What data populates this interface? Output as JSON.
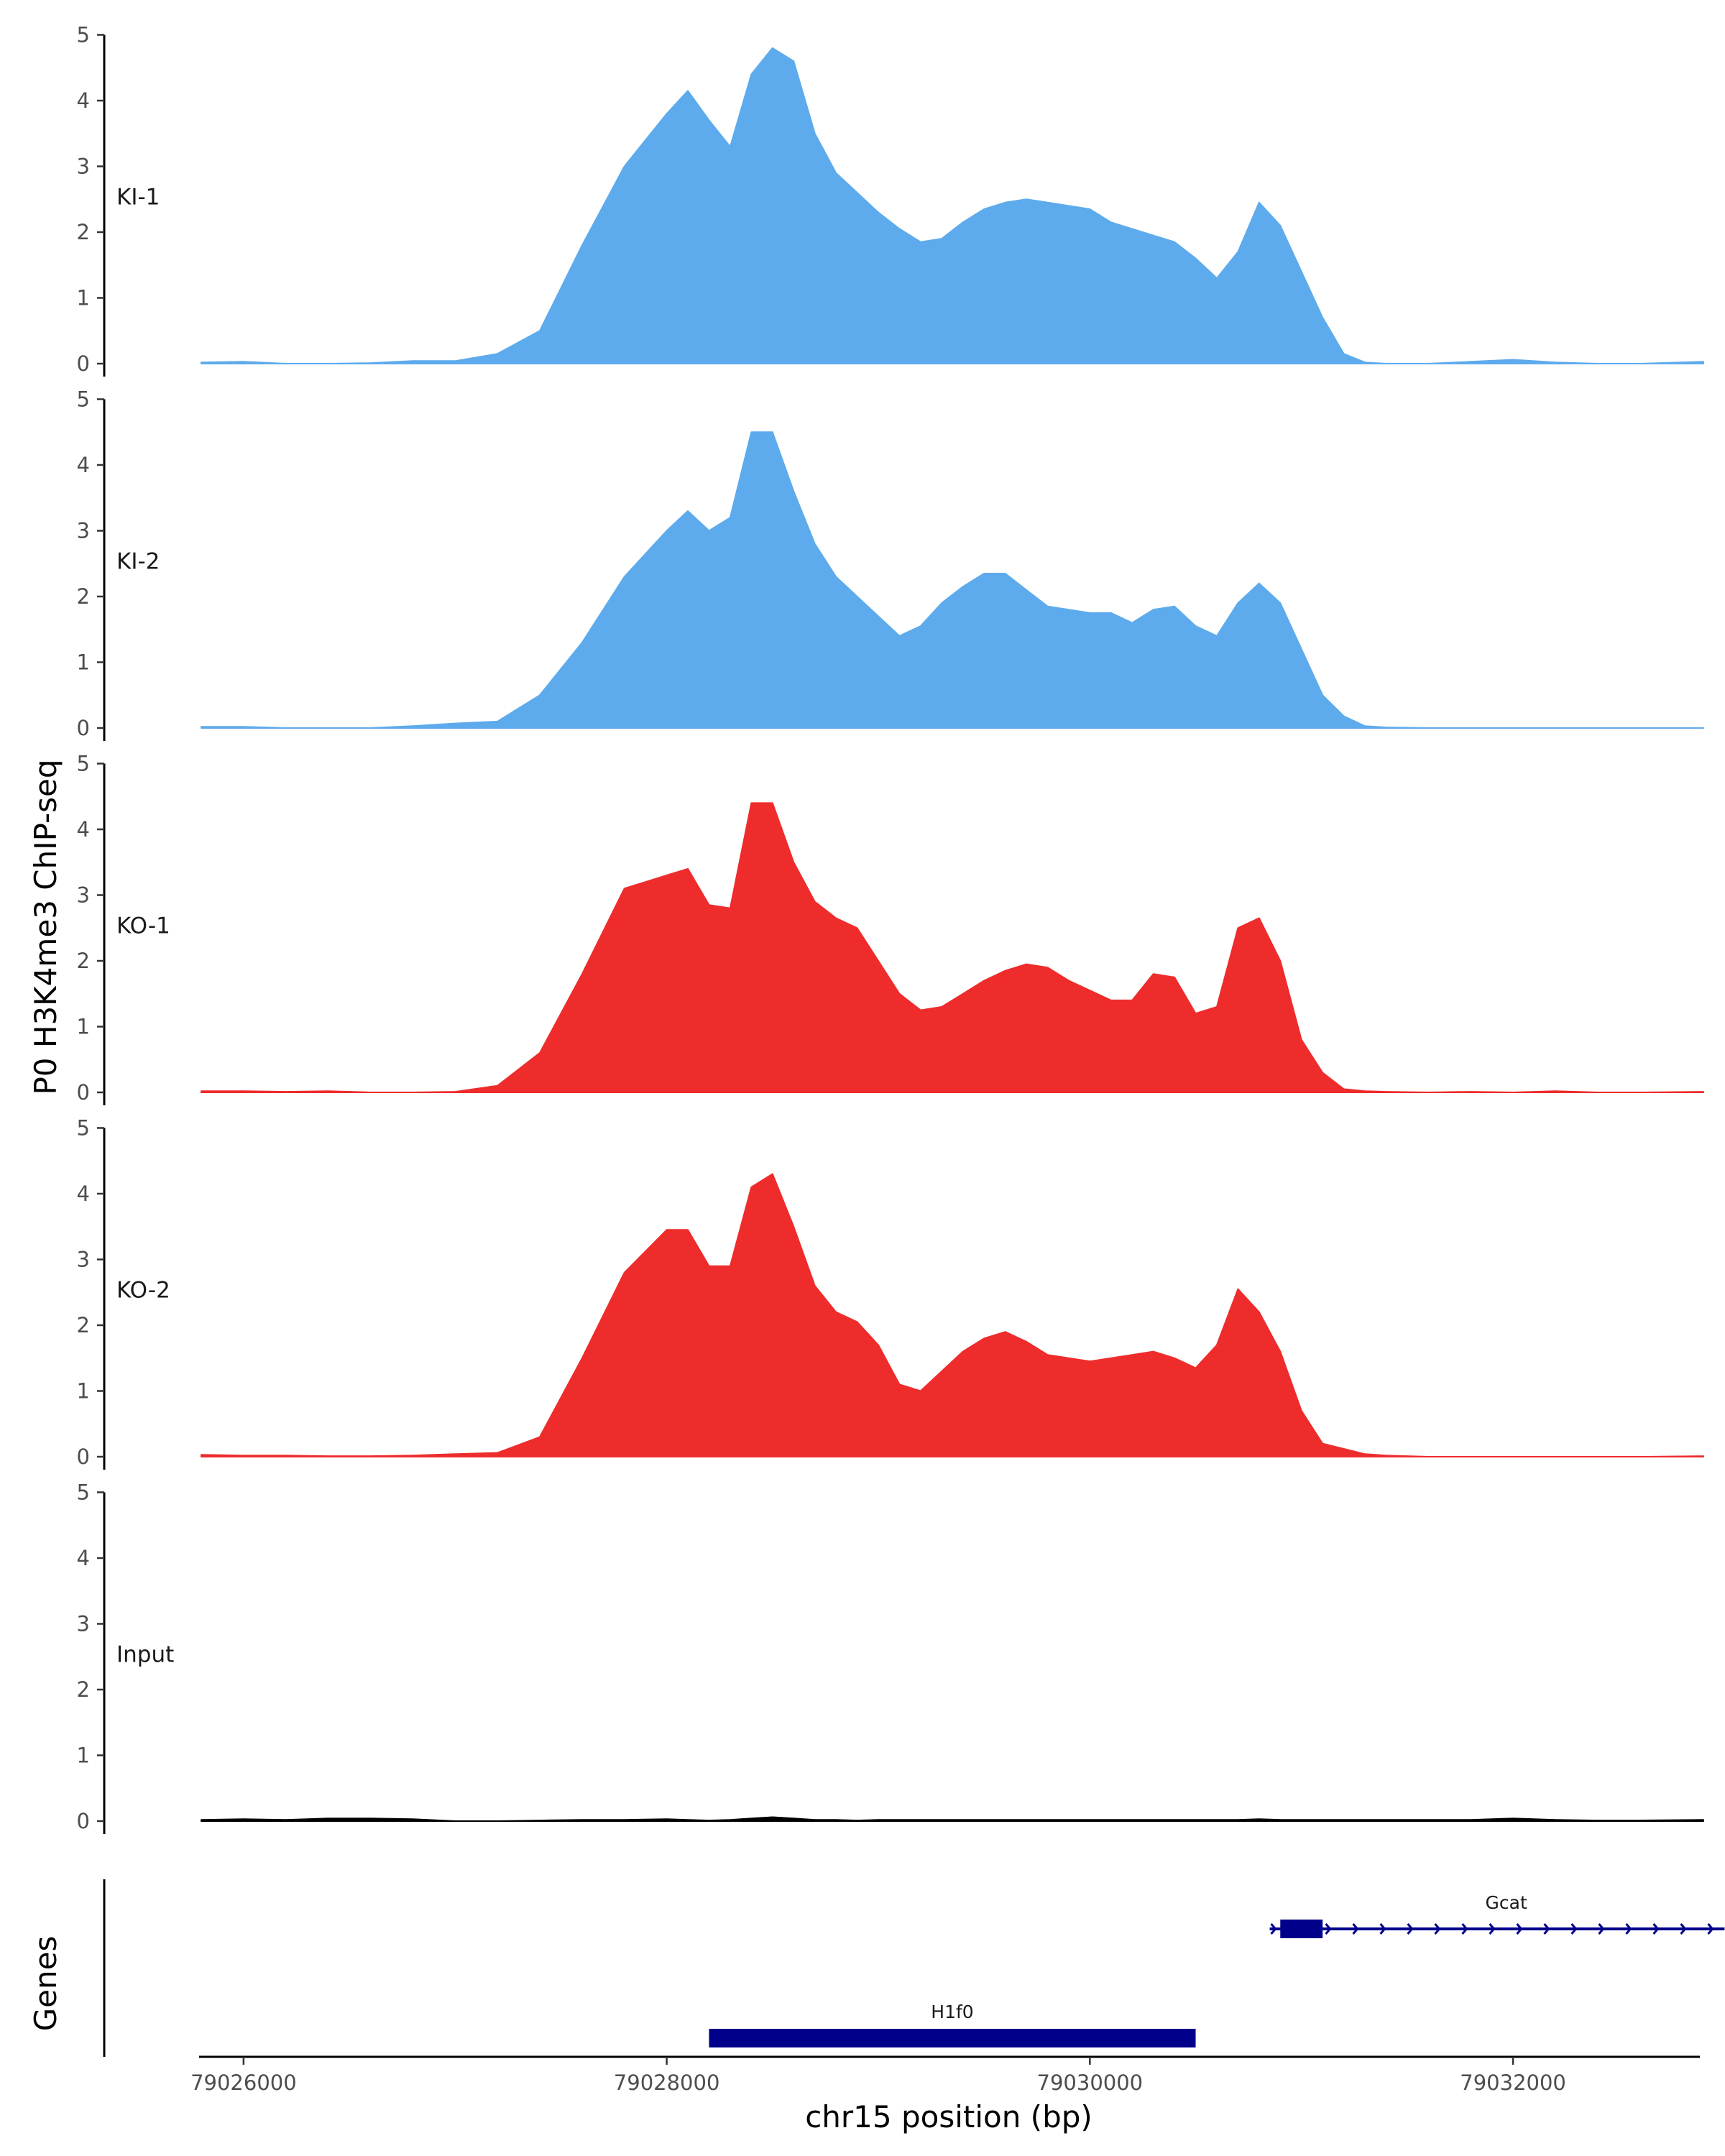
{
  "chart_data": {
    "type": "area",
    "title": "",
    "ylabel": "P0 H3K4me3 ChIP-seq",
    "xlabel": "chr15 position (bp)",
    "gene_track_label": "Genes",
    "xlim": [
      79025800,
      79032900
    ],
    "ylim": [
      0,
      5
    ],
    "y_ticks": [
      0,
      1,
      2,
      3,
      4,
      5
    ],
    "y_tick_labels": [
      "0",
      "1",
      "2",
      "3",
      "4",
      "5"
    ],
    "x_ticks": [
      79026000,
      79028000,
      79030000,
      79032000
    ],
    "x_tick_labels": [
      "79026000",
      "79028000",
      "79030000",
      "79032000"
    ],
    "colors": {
      "KI": "#5DABEC",
      "KO": "#EE2C2C",
      "Input": "#000000",
      "genes": "#00008B"
    },
    "x": [
      79025800,
      79026000,
      79026200,
      79026400,
      79026600,
      79026800,
      79027000,
      79027200,
      79027400,
      79027600,
      79027800,
      79028000,
      79028100,
      79028200,
      79028300,
      79028400,
      79028500,
      79028600,
      79028700,
      79028800,
      79028900,
      79029000,
      79029100,
      79029200,
      79029300,
      79029400,
      79029500,
      79029600,
      79029700,
      79029800,
      79029900,
      79030000,
      79030100,
      79030200,
      79030300,
      79030400,
      79030500,
      79030600,
      79030700,
      79030800,
      79030900,
      79031000,
      79031100,
      79031200,
      79031300,
      79031400,
      79031600,
      79031800,
      79032000,
      79032200,
      79032400,
      79032600,
      79032900
    ],
    "series": [
      {
        "name": "KI-1",
        "color": "#5DABEC",
        "values": [
          0.02,
          0.03,
          0.0,
          0.0,
          0.01,
          0.04,
          0.04,
          0.15,
          0.5,
          1.8,
          3.0,
          3.8,
          4.15,
          3.7,
          3.3,
          4.4,
          4.8,
          4.6,
          3.5,
          2.9,
          2.6,
          2.3,
          2.05,
          1.85,
          1.9,
          2.15,
          2.35,
          2.45,
          2.5,
          2.45,
          2.4,
          2.35,
          2.15,
          2.05,
          1.95,
          1.85,
          1.6,
          1.3,
          1.7,
          2.45,
          2.1,
          1.4,
          0.7,
          0.15,
          0.02,
          0.0,
          0.0,
          0.03,
          0.06,
          0.02,
          0.0,
          0.0,
          0.03
        ]
      },
      {
        "name": "KI-2",
        "color": "#5DABEC",
        "values": [
          0.02,
          0.02,
          0.0,
          0.0,
          0.0,
          0.03,
          0.07,
          0.1,
          0.5,
          1.3,
          2.3,
          3.0,
          3.3,
          3.0,
          3.2,
          4.5,
          4.5,
          3.6,
          2.8,
          2.3,
          2.0,
          1.7,
          1.4,
          1.55,
          1.9,
          2.15,
          2.35,
          2.35,
          2.1,
          1.85,
          1.8,
          1.75,
          1.75,
          1.6,
          1.8,
          1.85,
          1.55,
          1.4,
          1.9,
          2.2,
          1.9,
          1.2,
          0.5,
          0.18,
          0.03,
          0.01,
          0.0,
          0.0,
          0.0,
          0.0,
          0.0,
          0.0,
          0.0
        ]
      },
      {
        "name": "KO-1",
        "color": "#EE2C2C",
        "values": [
          0.02,
          0.02,
          0.01,
          0.02,
          0.0,
          0.0,
          0.01,
          0.1,
          0.6,
          1.8,
          3.1,
          3.3,
          3.4,
          2.85,
          2.8,
          4.4,
          4.4,
          3.5,
          2.9,
          2.65,
          2.5,
          2.0,
          1.5,
          1.25,
          1.3,
          1.5,
          1.7,
          1.85,
          1.95,
          1.9,
          1.7,
          1.55,
          1.4,
          1.4,
          1.8,
          1.75,
          1.2,
          1.3,
          2.5,
          2.65,
          2.0,
          0.8,
          0.3,
          0.05,
          0.02,
          0.01,
          0.0,
          0.01,
          0.0,
          0.02,
          0.0,
          0.0,
          0.01
        ]
      },
      {
        "name": "KO-2",
        "color": "#EE2C2C",
        "values": [
          0.03,
          0.02,
          0.02,
          0.01,
          0.01,
          0.02,
          0.04,
          0.06,
          0.3,
          1.5,
          2.8,
          3.45,
          3.45,
          2.9,
          2.9,
          4.1,
          4.3,
          3.5,
          2.6,
          2.2,
          2.05,
          1.7,
          1.1,
          1.0,
          1.3,
          1.6,
          1.8,
          1.9,
          1.75,
          1.55,
          1.5,
          1.45,
          1.5,
          1.55,
          1.6,
          1.5,
          1.35,
          1.7,
          2.55,
          2.2,
          1.6,
          0.7,
          0.2,
          0.12,
          0.04,
          0.02,
          0.0,
          0.0,
          0.0,
          0.0,
          0.0,
          0.0,
          0.01
        ]
      },
      {
        "name": "Input",
        "color": "#000000",
        "values": [
          0.02,
          0.03,
          0.02,
          0.04,
          0.04,
          0.03,
          0.0,
          0.0,
          0.01,
          0.02,
          0.02,
          0.03,
          0.02,
          0.01,
          0.02,
          0.04,
          0.06,
          0.04,
          0.02,
          0.02,
          0.01,
          0.02,
          0.02,
          0.02,
          0.02,
          0.02,
          0.02,
          0.02,
          0.02,
          0.02,
          0.02,
          0.02,
          0.02,
          0.02,
          0.02,
          0.02,
          0.02,
          0.02,
          0.02,
          0.03,
          0.02,
          0.02,
          0.02,
          0.02,
          0.02,
          0.02,
          0.02,
          0.02,
          0.04,
          0.02,
          0.01,
          0.01,
          0.02
        ]
      }
    ],
    "genes": [
      {
        "name": "H1f0",
        "start": 79028200,
        "end": 79030500,
        "cds_start": 79028200,
        "cds_end": 79030500,
        "strand": "+",
        "row": 1
      },
      {
        "name": "Gcat",
        "start": 79030850,
        "end": 79033000,
        "cds_start": 79030900,
        "cds_end": 79031100,
        "strand": "+",
        "row": 0
      }
    ]
  }
}
